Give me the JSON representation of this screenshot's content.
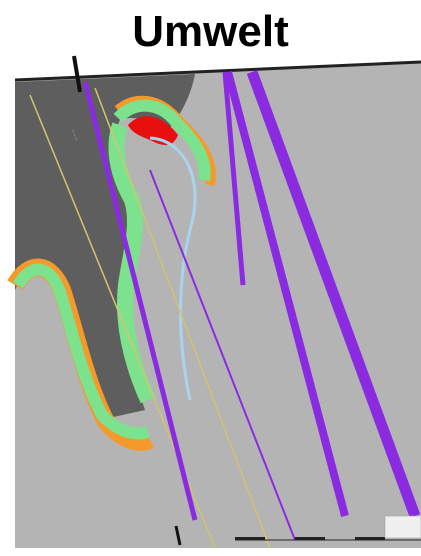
{
  "title": "Umwelt",
  "colors": {
    "background": "#b4b4b4",
    "dark_zone": "#5e5e5e",
    "green_band": "#7de28e",
    "orange_band": "#f39a2b",
    "red_core": "#e80f0f",
    "light_blue_line": "#a9d3ef",
    "purple_line": "#8a2be2",
    "yellow_line": "#d2c56f"
  }
}
